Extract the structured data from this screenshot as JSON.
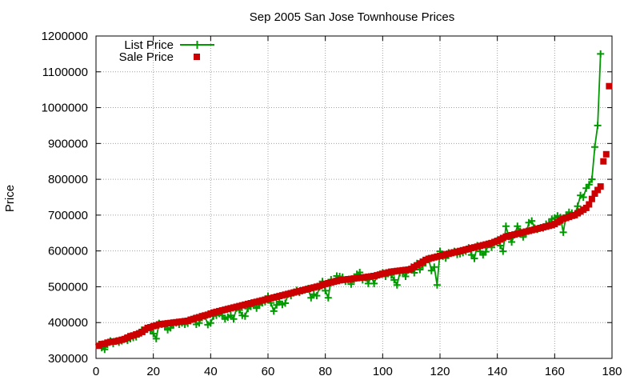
{
  "chart_data": {
    "type": "line",
    "title": "Sep 2005 San Jose Townhouse Prices",
    "xlabel": "",
    "ylabel": "Price",
    "xlim": [
      0,
      180
    ],
    "ylim": [
      300000,
      1200000
    ],
    "x_ticks": [
      0,
      20,
      40,
      60,
      80,
      100,
      120,
      140,
      160,
      180
    ],
    "x_tick_labels": [
      "0",
      "20",
      "40",
      "60",
      "80",
      "100",
      "120",
      "140",
      "160",
      "180"
    ],
    "y_ticks": [
      300000,
      400000,
      500000,
      600000,
      700000,
      800000,
      900000,
      1000000,
      1100000,
      1200000
    ],
    "y_tick_labels": [
      "300000",
      "400000",
      "500000",
      "600000",
      "700000",
      "800000",
      "900000",
      "1000000",
      "1100000",
      "1200000"
    ],
    "grid": true,
    "legend_position": "top-left",
    "series": [
      {
        "name": "List Price",
        "style": "line+cross",
        "color": "#009900",
        "values": [
          339000,
          330000,
          325000,
          339000,
          349000,
          341000,
          348000,
          345000,
          349000,
          355000,
          350000,
          355000,
          358000,
          360000,
          368000,
          379000,
          375000,
          382000,
          379000,
          369000,
          355000,
          398000,
          395000,
          389000,
          380000,
          385000,
          394000,
          399000,
          395000,
          399000,
          395000,
          398000,
          405000,
          410000,
          395000,
          399000,
          414000,
          418000,
          394000,
          399000,
          418000,
          420000,
          425000,
          420000,
          410000,
          415000,
          420000,
          410000,
          440000,
          435000,
          420000,
          418000,
          439000,
          445000,
          449000,
          440000,
          449000,
          455000,
          458000,
          474000,
          455000,
          432000,
          449000,
          459000,
          450000,
          454000,
          479000,
          475000,
          485000,
          490000,
          484000,
          489000,
          492000,
          495000,
          469000,
          479000,
          475000,
          499000,
          515000,
          489000,
          469000,
          520000,
          515000,
          530000,
          529000,
          527000,
          515000,
          519000,
          507000,
          520000,
          535000,
          540000,
          519000,
          525000,
          509000,
          529000,
          509000,
          530000,
          535000,
          539000,
          529000,
          539000,
          533000,
          519000,
          505000,
          539000,
          539000,
          529000,
          546000,
          555000,
          539000,
          565000,
          548000,
          559000,
          570000,
          579000,
          545000,
          555000,
          505000,
          599000,
          585000,
          580000,
          595000,
          595000,
          599000,
          590000,
          592000,
          595000,
          599000,
          609000,
          589000,
          579000,
          615000,
          599000,
          589000,
          598000,
          620000,
          610000,
          625000,
          629000,
          615000,
          599000,
          669000,
          640000,
          625000,
          645000,
          669000,
          655000,
          639000,
          649000,
          679000,
          684000,
          664000,
          660000,
          664000,
          664000,
          675000,
          678000,
          689000,
          692000,
          698000,
          694000,
          652000,
          700000,
          708000,
          706000,
          700000,
          725000,
          755000,
          750000,
          775000,
          785000,
          800000,
          890000,
          950000,
          1150000
        ]
      },
      {
        "name": "Sale Price",
        "style": "square",
        "color": "#cc0000",
        "values": [
          335000,
          340000,
          341000,
          344000,
          346000,
          347000,
          348000,
          350000,
          352000,
          354000,
          358000,
          362000,
          364000,
          367000,
          370000,
          374000,
          380000,
          385000,
          387000,
          390000,
          392000,
          395000,
          396000,
          397000,
          398000,
          399000,
          400000,
          401000,
          402000,
          403000,
          404000,
          405000,
          408000,
          410000,
          413000,
          415000,
          418000,
          420000,
          422000,
          425000,
          428000,
          430000,
          432000,
          434000,
          436000,
          438000,
          440000,
          442000,
          444000,
          446000,
          448000,
          450000,
          452000,
          454000,
          456000,
          458000,
          460000,
          462000,
          464000,
          466000,
          468000,
          470000,
          472000,
          474000,
          476000,
          478000,
          480000,
          482000,
          484000,
          486000,
          488000,
          490000,
          492000,
          494000,
          496000,
          498000,
          500000,
          502000,
          505000,
          508000,
          510000,
          512000,
          514000,
          516000,
          518000,
          519000,
          520000,
          521000,
          522000,
          523000,
          524000,
          525000,
          526000,
          527000,
          528000,
          529000,
          530000,
          532000,
          534000,
          536000,
          538000,
          540000,
          542000,
          543000,
          544000,
          545000,
          546000,
          547000,
          548000,
          550000,
          555000,
          560000,
          565000,
          570000,
          575000,
          578000,
          580000,
          582000,
          584000,
          586000,
          588000,
          590000,
          592000,
          594000,
          596000,
          598000,
          600000,
          602000,
          604000,
          606000,
          608000,
          610000,
          612000,
          614000,
          616000,
          618000,
          620000,
          622000,
          625000,
          628000,
          632000,
          636000,
          640000,
          642000,
          644000,
          646000,
          648000,
          650000,
          652000,
          654000,
          656000,
          658000,
          660000,
          662000,
          664000,
          666000,
          668000,
          670000,
          672000,
          675000,
          680000,
          685000,
          690000,
          692000,
          695000,
          698000,
          700000,
          705000,
          710000,
          715000,
          720000,
          730000,
          745000,
          760000,
          770000,
          780000,
          850000,
          870000,
          1060000
        ]
      }
    ]
  }
}
